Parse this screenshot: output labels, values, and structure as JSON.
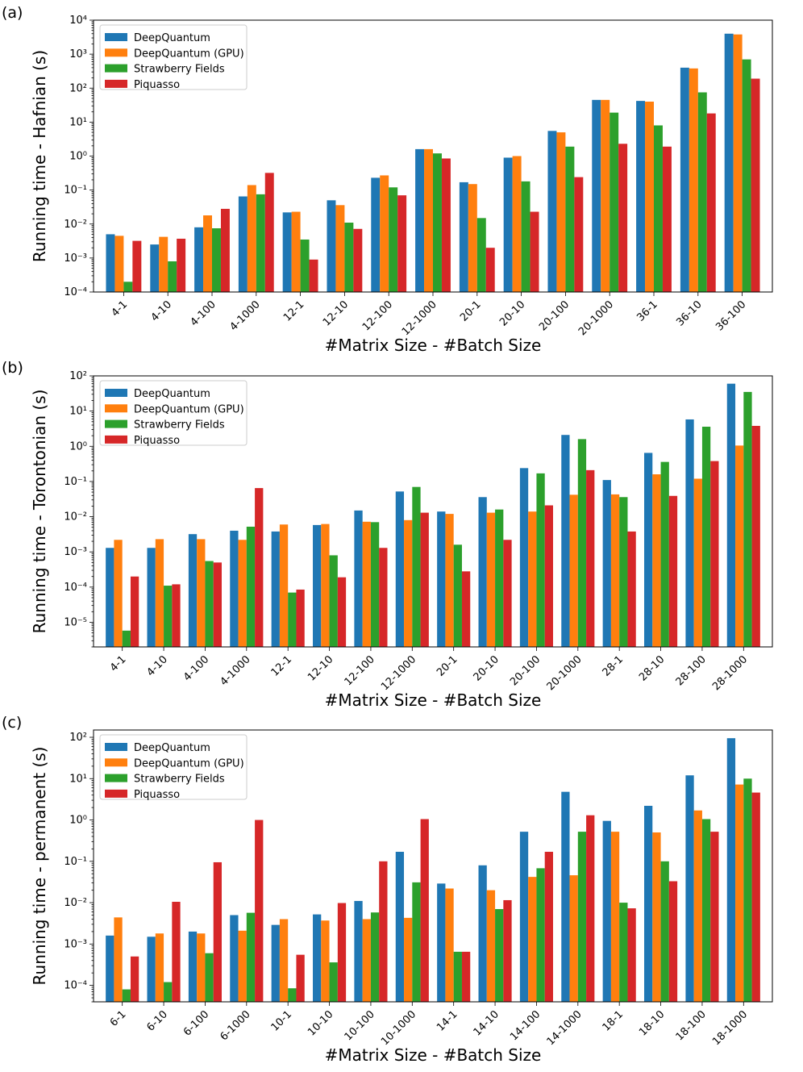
{
  "legend": [
    "DeepQuantum",
    "DeepQuantum (GPU)",
    "Strawberry Fields",
    "Piquasso"
  ],
  "colors": [
    "#1f77b4",
    "#ff7f0e",
    "#2ca02c",
    "#d62728"
  ],
  "chart_data": [
    {
      "panel_label": "(a)",
      "type": "bar",
      "title": "",
      "xlabel": "#Matrix Size - #Batch Size",
      "ylabel": "Running time - Hafnian (s)",
      "yscale": "log",
      "ylim": [
        0.0001,
        10000
      ],
      "grid": false,
      "legend_position": "top-left",
      "categories": [
        "4-1",
        "4-10",
        "4-100",
        "4-1000",
        "12-1",
        "12-10",
        "12-100",
        "12-1000",
        "20-1",
        "20-10",
        "20-100",
        "20-1000",
        "36-1",
        "36-10",
        "36-100"
      ],
      "series": [
        {
          "name": "DeepQuantum",
          "values": [
            0.005,
            0.0025,
            0.008,
            0.065,
            0.022,
            0.05,
            0.23,
            1.6,
            0.17,
            0.9,
            5.5,
            45,
            42,
            400,
            4000
          ]
        },
        {
          "name": "DeepQuantum (GPU)",
          "values": [
            0.0045,
            0.0042,
            0.018,
            0.14,
            0.023,
            0.036,
            0.27,
            1.6,
            0.15,
            1.0,
            5.0,
            45,
            40,
            380,
            3800
          ]
        },
        {
          "name": "Strawberry Fields",
          "values": [
            0.0002,
            0.0008,
            0.0075,
            0.075,
            0.0035,
            0.011,
            0.12,
            1.2,
            0.015,
            0.18,
            1.9,
            19,
            8,
            75,
            700
          ]
        },
        {
          "name": "Piquasso",
          "values": [
            0.0032,
            0.0037,
            0.028,
            0.32,
            0.0009,
            0.0072,
            0.07,
            0.85,
            0.002,
            0.023,
            0.24,
            2.3,
            1.9,
            18,
            190
          ]
        }
      ]
    },
    {
      "panel_label": "(b)",
      "type": "bar",
      "title": "",
      "xlabel": "#Matrix Size - #Batch Size",
      "ylabel": "Running time - Torontonian (s)",
      "yscale": "log",
      "ylim": [
        2e-06,
        100
      ],
      "grid": false,
      "legend_position": "top-left",
      "categories": [
        "4-1",
        "4-10",
        "4-100",
        "4-1000",
        "12-1",
        "12-10",
        "12-100",
        "12-1000",
        "20-1",
        "20-10",
        "20-100",
        "20-1000",
        "28-1",
        "28-10",
        "28-100",
        "28-1000"
      ],
      "series": [
        {
          "name": "DeepQuantum",
          "values": [
            0.0013,
            0.0013,
            0.0032,
            0.004,
            0.0038,
            0.0058,
            0.015,
            0.052,
            0.014,
            0.036,
            0.24,
            2.1,
            0.11,
            0.65,
            5.8,
            60
          ]
        },
        {
          "name": "DeepQuantum (GPU)",
          "values": [
            0.0022,
            0.0023,
            0.0023,
            0.0022,
            0.006,
            0.0062,
            0.0072,
            0.008,
            0.012,
            0.013,
            0.014,
            0.042,
            0.043,
            0.16,
            0.12,
            1.05
          ]
        },
        {
          "name": "Strawberry Fields",
          "values": [
            5.8e-06,
            0.00011,
            0.00055,
            0.0052,
            7e-05,
            0.0008,
            0.007,
            0.07,
            0.0016,
            0.016,
            0.17,
            1.6,
            0.036,
            0.36,
            3.6,
            35
          ]
        },
        {
          "name": "Piquasso",
          "values": [
            0.0002,
            0.00012,
            0.0005,
            0.065,
            8.5e-05,
            0.00019,
            0.0013,
            0.013,
            0.00028,
            0.0022,
            0.021,
            0.21,
            0.0038,
            0.039,
            0.38,
            3.8
          ]
        }
      ]
    },
    {
      "panel_label": "(c)",
      "type": "bar",
      "title": "",
      "xlabel": "#Matrix Size - #Batch Size",
      "ylabel": "Running time - permanent (s)",
      "yscale": "log",
      "ylim": [
        4e-05,
        150
      ],
      "grid": false,
      "legend_position": "top-left",
      "categories": [
        "6-1",
        "6-10",
        "6-100",
        "6-1000",
        "10-1",
        "10-10",
        "10-100",
        "10-1000",
        "14-1",
        "14-10",
        "14-100",
        "14-1000",
        "18-1",
        "18-10",
        "18-100",
        "18-1000"
      ],
      "series": [
        {
          "name": "DeepQuantum",
          "values": [
            0.0016,
            0.0015,
            0.002,
            0.005,
            0.0029,
            0.0052,
            0.011,
            0.17,
            0.029,
            0.08,
            0.52,
            4.8,
            0.95,
            2.2,
            12,
            95
          ]
        },
        {
          "name": "DeepQuantum (GPU)",
          "values": [
            0.0044,
            0.0018,
            0.0018,
            0.0021,
            0.004,
            0.0037,
            0.004,
            0.0043,
            0.022,
            0.02,
            0.042,
            0.046,
            0.52,
            0.5,
            1.7,
            7.2
          ]
        },
        {
          "name": "Strawberry Fields",
          "values": [
            8e-05,
            0.00012,
            0.0006,
            0.0057,
            8.5e-05,
            0.00036,
            0.0058,
            0.031,
            0.00065,
            0.007,
            0.068,
            0.52,
            0.01,
            0.1,
            1.05,
            10
          ]
        },
        {
          "name": "Piquasso",
          "values": [
            0.0005,
            0.0105,
            0.095,
            1.0,
            0.00055,
            0.0098,
            0.1,
            1.05,
            0.00065,
            0.0115,
            0.17,
            1.3,
            0.0073,
            0.033,
            0.52,
            4.6
          ]
        }
      ]
    }
  ]
}
